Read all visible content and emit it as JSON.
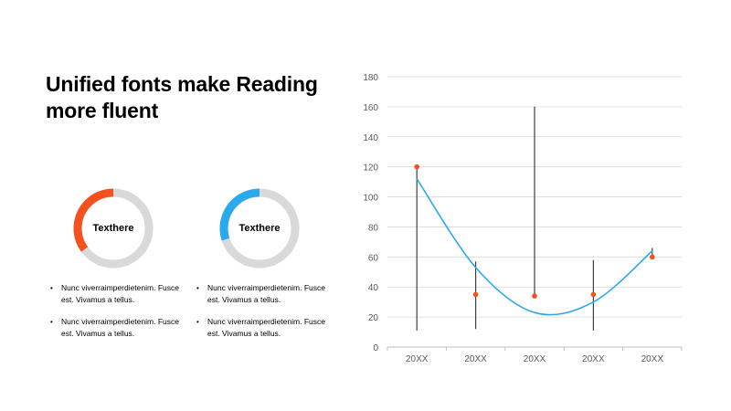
{
  "slide": {
    "title": "Unified fonts make Reading more fluent"
  },
  "donuts": [
    {
      "label": "Texthere",
      "color": "#f4511e",
      "track_color": "#d9d9d9",
      "fraction": 0.35,
      "bullets": [
        "Nunc viverraimperdietenim. Fusce est. Vivamus a tellus.",
        "Nunc viverraimperdietenim. Fusce est. Vivamus a tellus."
      ]
    },
    {
      "label": "Texthere",
      "color": "#29aaef",
      "track_color": "#d9d9d9",
      "fraction": 0.3,
      "bullets": [
        "Nunc viverraimperdietenim. Fusce est. Vivamus a tellus.",
        "Nunc viverraimperdietenim. Fusce est. Vivamus a tellus."
      ]
    }
  ],
  "chart_data": {
    "type": "scatter",
    "categories": [
      "20XX",
      "20XX",
      "20XX",
      "20XX",
      "20XX"
    ],
    "points": [
      120,
      35,
      34,
      35,
      60
    ],
    "bar_high": [
      120,
      57,
      160,
      58,
      66
    ],
    "bar_low": [
      11,
      12,
      34,
      11,
      60
    ],
    "trendline": "polynomial",
    "trendline_values": [
      112,
      53,
      23,
      30,
      64
    ],
    "ylim": [
      0,
      180
    ],
    "yticks": [
      "0",
      "20",
      "40",
      "60",
      "80",
      "100",
      "120",
      "140",
      "160",
      "180"
    ],
    "grid": true,
    "point_color": "#f4511e",
    "trendline_color": "#29aaef",
    "bar_color": "#404040"
  }
}
